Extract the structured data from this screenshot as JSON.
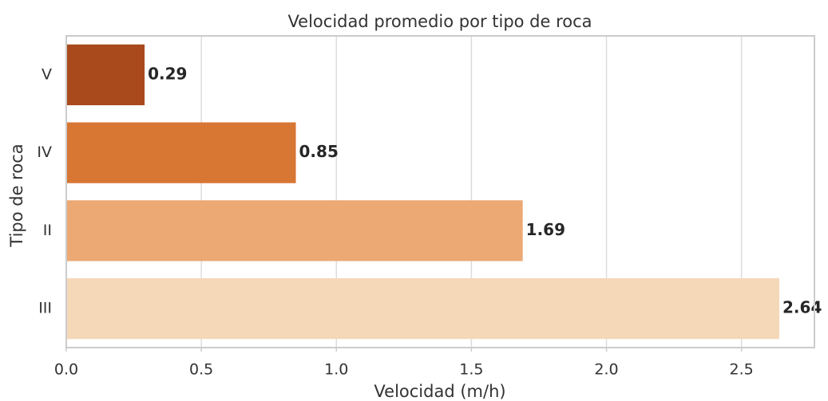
{
  "chart_data": {
    "type": "barh",
    "title": "Velocidad promedio por tipo de roca",
    "xlabel": "Velocidad (m/h)",
    "ylabel": "Tipo de roca",
    "categories": [
      "V",
      "IV",
      "II",
      "III"
    ],
    "values": [
      0.29,
      0.85,
      1.69,
      2.64
    ],
    "colors": [
      "#a84a1c",
      "#d87634",
      "#eca974",
      "#f5d8b8"
    ],
    "xlim": [
      0,
      2.77
    ],
    "xticks": [
      {
        "value": 0,
        "label": "0.0"
      },
      0.5,
      {
        "value": 1,
        "label": "1.0"
      },
      1.5,
      {
        "value": 2,
        "label": "2.0"
      },
      2.5
    ],
    "grid": true
  }
}
